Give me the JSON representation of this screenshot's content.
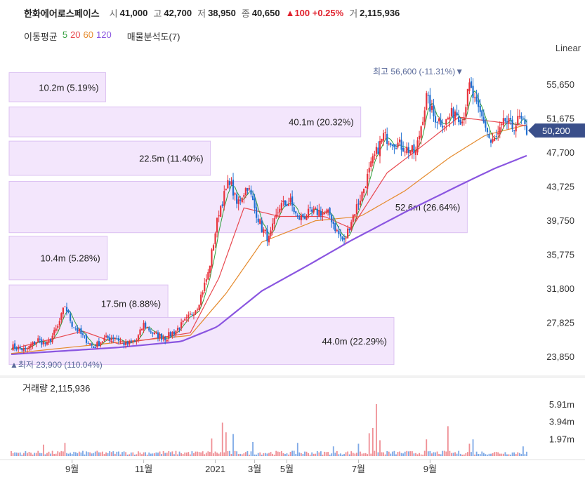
{
  "header": {
    "name": "한화에어로스페이스",
    "open_label": "시",
    "open": "41,000",
    "high_label": "고",
    "high": "42,700",
    "low_label": "저",
    "low": "38,950",
    "close_label": "종",
    "close": "40,650",
    "change": "▲100 +0.25%",
    "volume_label": "거",
    "volume": "2,115,936"
  },
  "ma_legend": {
    "title": "이동평균",
    "periods": [
      "5",
      "20",
      "60",
      "120"
    ],
    "colors": [
      "#2e9e3a",
      "#e8484f",
      "#e58a2c",
      "#8a55e0"
    ],
    "volume_profile": "매물분석도(7)"
  },
  "scale_toggle": "Linear",
  "price_panel": {
    "last_price": "50,200",
    "high_marker": "최고 56,600 (-11.31%)▼",
    "low_marker": "▲최저 23,900 (110.04%)"
  },
  "volume_panel": {
    "label": "거래량 2,115,936"
  },
  "chart_data": {
    "type": "candlestick",
    "y_ticks": [
      "55,650",
      "51,675",
      "47,700",
      "43,725",
      "39,750",
      "35,775",
      "31,800",
      "27,825",
      "23,850"
    ],
    "y_tick_values": [
      55650,
      51675,
      47700,
      43725,
      39750,
      35775,
      31800,
      27825,
      23850
    ],
    "x_ticks": [
      "9월",
      "11월",
      "2021",
      "3월",
      "5월",
      "7월",
      "9월"
    ],
    "volume_ticks": [
      "5.91m",
      "3.94m",
      "1.97m"
    ],
    "volume_tick_values": [
      5.91,
      3.94,
      1.97
    ],
    "volume_profile": [
      {
        "label": "10.2m (5.19%)",
        "price_from": 53600,
        "price_to": 57000,
        "share": 5.19
      },
      {
        "label": "40.1m (20.32%)",
        "price_from": 49500,
        "price_to": 53000,
        "share": 20.32
      },
      {
        "label": "22.5m (11.40%)",
        "price_from": 45000,
        "price_to": 49000,
        "share": 11.4
      },
      {
        "label": "52.6m (26.64%)",
        "price_from": 38300,
        "price_to": 44300,
        "share": 26.64
      },
      {
        "label": "10.4m (5.28%)",
        "price_from": 32800,
        "price_to": 37900,
        "share": 5.28
      },
      {
        "label": "17.5m (8.88%)",
        "price_from": 27900,
        "price_to": 32200,
        "share": 8.88
      },
      {
        "label": "44.0m (22.29%)",
        "price_from": 22900,
        "price_to": 28400,
        "share": 22.29
      }
    ],
    "close_series": [
      {
        "i": 0,
        "p": 25000
      },
      {
        "i": 8,
        "p": 24600
      },
      {
        "i": 15,
        "p": 25800
      },
      {
        "i": 20,
        "p": 25200
      },
      {
        "i": 26,
        "p": 27300
      },
      {
        "i": 30,
        "p": 29800
      },
      {
        "i": 34,
        "p": 27600
      },
      {
        "i": 40,
        "p": 26200
      },
      {
        "i": 46,
        "p": 24900
      },
      {
        "i": 52,
        "p": 25900
      },
      {
        "i": 58,
        "p": 26100
      },
      {
        "i": 64,
        "p": 25200
      },
      {
        "i": 70,
        "p": 25700
      },
      {
        "i": 74,
        "p": 27600
      },
      {
        "i": 80,
        "p": 26400
      },
      {
        "i": 86,
        "p": 26000
      },
      {
        "i": 92,
        "p": 26900
      },
      {
        "i": 98,
        "p": 28100
      },
      {
        "i": 104,
        "p": 29700
      },
      {
        "i": 110,
        "p": 33500
      },
      {
        "i": 116,
        "p": 40800
      },
      {
        "i": 122,
        "p": 44500
      },
      {
        "i": 126,
        "p": 41600
      },
      {
        "i": 132,
        "p": 43800
      },
      {
        "i": 136,
        "p": 41200
      },
      {
        "i": 140,
        "p": 38800
      },
      {
        "i": 144,
        "p": 37500
      },
      {
        "i": 150,
        "p": 41400
      },
      {
        "i": 156,
        "p": 41900
      },
      {
        "i": 160,
        "p": 39900
      },
      {
        "i": 166,
        "p": 40500
      },
      {
        "i": 172,
        "p": 40800
      },
      {
        "i": 178,
        "p": 40400
      },
      {
        "i": 182,
        "p": 38400
      },
      {
        "i": 186,
        "p": 37200
      },
      {
        "i": 190,
        "p": 39800
      },
      {
        "i": 196,
        "p": 42900
      },
      {
        "i": 202,
        "p": 46700
      },
      {
        "i": 208,
        "p": 49600
      },
      {
        "i": 214,
        "p": 48900
      },
      {
        "i": 220,
        "p": 48200
      },
      {
        "i": 226,
        "p": 47600
      },
      {
        "i": 232,
        "p": 54100
      },
      {
        "i": 236,
        "p": 51900
      },
      {
        "i": 242,
        "p": 51100
      },
      {
        "i": 248,
        "p": 52600
      },
      {
        "i": 252,
        "p": 51400
      },
      {
        "i": 256,
        "p": 55400
      },
      {
        "i": 260,
        "p": 52900
      },
      {
        "i": 264,
        "p": 51400
      },
      {
        "i": 268,
        "p": 48700
      },
      {
        "i": 272,
        "p": 49600
      },
      {
        "i": 276,
        "p": 51400
      },
      {
        "i": 280,
        "p": 50600
      },
      {
        "i": 284,
        "p": 51600
      },
      {
        "i": 288,
        "p": 50200
      }
    ],
    "ma_levels": {
      "ma20": [
        {
          "i": 0,
          "p": 24700
        },
        {
          "i": 40,
          "p": 26800
        },
        {
          "i": 60,
          "p": 25300
        },
        {
          "i": 100,
          "p": 26600
        },
        {
          "i": 116,
          "p": 33000
        },
        {
          "i": 130,
          "p": 41200
        },
        {
          "i": 150,
          "p": 40200
        },
        {
          "i": 175,
          "p": 40200
        },
        {
          "i": 190,
          "p": 38800
        },
        {
          "i": 210,
          "p": 45300
        },
        {
          "i": 230,
          "p": 48500
        },
        {
          "i": 250,
          "p": 51800
        },
        {
          "i": 265,
          "p": 51400
        },
        {
          "i": 288,
          "p": 50800
        }
      ],
      "ma60": [
        {
          "i": 0,
          "p": 24200
        },
        {
          "i": 60,
          "p": 25500
        },
        {
          "i": 100,
          "p": 26300
        },
        {
          "i": 120,
          "p": 31200
        },
        {
          "i": 140,
          "p": 37200
        },
        {
          "i": 170,
          "p": 39700
        },
        {
          "i": 195,
          "p": 40200
        },
        {
          "i": 220,
          "p": 43200
        },
        {
          "i": 245,
          "p": 47100
        },
        {
          "i": 265,
          "p": 49700
        },
        {
          "i": 288,
          "p": 50900
        }
      ],
      "ma120": [
        {
          "i": 0,
          "p": 24100
        },
        {
          "i": 60,
          "p": 24900
        },
        {
          "i": 95,
          "p": 25600
        },
        {
          "i": 115,
          "p": 27300
        },
        {
          "i": 140,
          "p": 31500
        },
        {
          "i": 165,
          "p": 34400
        },
        {
          "i": 190,
          "p": 37400
        },
        {
          "i": 220,
          "p": 40700
        },
        {
          "i": 250,
          "p": 43800
        },
        {
          "i": 270,
          "p": 45800
        },
        {
          "i": 288,
          "p": 47300
        }
      ]
    },
    "volume_peaks": [
      {
        "i": 18,
        "v": 1.3
      },
      {
        "i": 30,
        "v": 1.5
      },
      {
        "i": 112,
        "v": 2.0
      },
      {
        "i": 118,
        "v": 3.8
      },
      {
        "i": 120,
        "v": 2.7
      },
      {
        "i": 124,
        "v": 2.5
      },
      {
        "i": 135,
        "v": 1.6
      },
      {
        "i": 160,
        "v": 1.5
      },
      {
        "i": 180,
        "v": 1.1
      },
      {
        "i": 194,
        "v": 1.4
      },
      {
        "i": 200,
        "v": 2.6
      },
      {
        "i": 202,
        "v": 3.2
      },
      {
        "i": 204,
        "v": 5.91
      },
      {
        "i": 206,
        "v": 1.8
      },
      {
        "i": 232,
        "v": 1.9
      },
      {
        "i": 244,
        "v": 3.4
      },
      {
        "i": 256,
        "v": 1.4
      },
      {
        "i": 258,
        "v": 1.9
      },
      {
        "i": 286,
        "v": 1.1
      }
    ]
  }
}
